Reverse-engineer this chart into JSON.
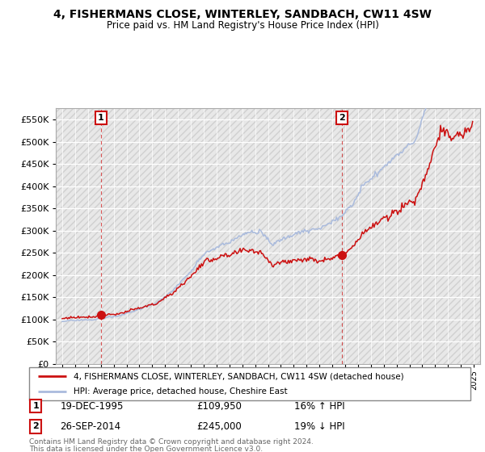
{
  "title": "4, FISHERMANS CLOSE, WINTERLEY, SANDBACH, CW11 4SW",
  "subtitle": "Price paid vs. HM Land Registry's House Price Index (HPI)",
  "legend_line1": "4, FISHERMANS CLOSE, WINTERLEY, SANDBACH, CW11 4SW (detached house)",
  "legend_line2": "HPI: Average price, detached house, Cheshire East",
  "annotation1_label": "1",
  "annotation1_date": "19-DEC-1995",
  "annotation1_price": "£109,950",
  "annotation1_hpi": "16% ↑ HPI",
  "annotation2_label": "2",
  "annotation2_date": "26-SEP-2014",
  "annotation2_price": "£245,000",
  "annotation2_hpi": "19% ↓ HPI",
  "footer_line1": "Contains HM Land Registry data © Crown copyright and database right 2024.",
  "footer_line2": "This data is licensed under the Open Government Licence v3.0.",
  "ylim_min": 0,
  "ylim_max": 575000,
  "yticks": [
    0,
    50000,
    100000,
    150000,
    200000,
    250000,
    300000,
    350000,
    400000,
    450000,
    500000,
    550000
  ],
  "xlim_min": 1992.5,
  "xlim_max": 2025.5,
  "sale1_year": 1995.96,
  "sale1_price": 109950,
  "sale2_year": 2014.73,
  "sale2_price": 245000,
  "hpi_color": "#aabbdd",
  "price_color": "#cc1111",
  "bg_hatch_color": "#e8e8e8",
  "hatch_line_color": "#d0d0d0",
  "grid_color": "#ffffff"
}
